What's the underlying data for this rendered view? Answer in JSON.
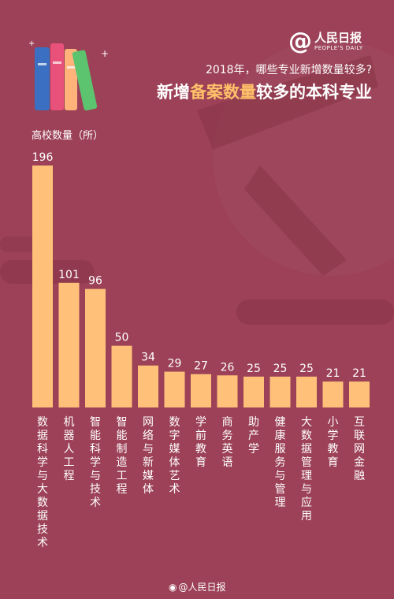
{
  "header": {
    "logo_at": "@",
    "logo_cn": "人民日报",
    "logo_en": "PEOPLE'S DAILY",
    "subtitle": "2018年，哪些专业新增数量较多?",
    "title_part1": "新增",
    "title_highlight": "备案数量",
    "title_part2": "较多的本科专业"
  },
  "footer": {
    "icon": "weibo-icon",
    "text": "@人民日报"
  },
  "colors": {
    "background": "#9c4157",
    "bar": "#ffc17a",
    "highlight": "#ffc06a",
    "text": "#ffffff"
  },
  "chart_data": {
    "type": "bar",
    "ylabel": "高校数量（所）",
    "categories": [
      "数据科学与大数据技术",
      "机器人工程",
      "智能科学与技术",
      "智能制造工程",
      "网络与新媒体",
      "数字媒体艺术",
      "学前教育",
      "商务英语",
      "助产学",
      "健康服务与管理",
      "大数据管理与应用",
      "小学教育",
      "互联网金融"
    ],
    "values": [
      196,
      101,
      96,
      50,
      34,
      29,
      27,
      26,
      25,
      25,
      25,
      21,
      21
    ],
    "ylim": [
      0,
      196
    ],
    "grid": false,
    "data_labels": true
  }
}
